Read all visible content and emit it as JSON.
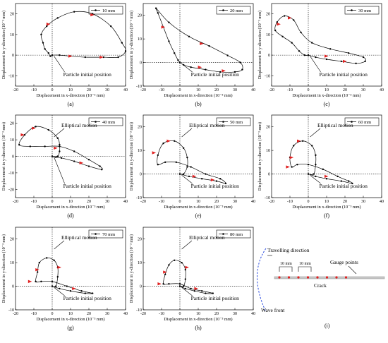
{
  "chart_data": [
    {
      "type": "line",
      "panel": "(a)",
      "legend": "10 mm",
      "xlabel": "Displacement in x-direction (10⁻³ mm)",
      "ylabel": "Displacement in y-direction (10⁻³ mm)",
      "xlim": [
        -20,
        40
      ],
      "ylim": [
        -15,
        25
      ],
      "xticks": [
        -20,
        -10,
        0,
        10,
        20,
        30,
        40
      ],
      "yticks": [
        -10,
        0,
        10,
        20
      ],
      "legend_position": "top-right",
      "annotations": [
        "Particle initial position"
      ],
      "series": [
        {
          "values": [
            [
              0,
              0
            ],
            [
              -1,
              -0.5
            ],
            [
              -2,
              1
            ],
            [
              -4,
              3
            ],
            [
              -5,
              6
            ],
            [
              -6,
              10
            ],
            [
              -3,
              14
            ],
            [
              3,
              18
            ],
            [
              12,
              21
            ],
            [
              22,
              20
            ],
            [
              32,
              14
            ],
            [
              38,
              6
            ],
            [
              40,
              2
            ],
            [
              36,
              -1
            ],
            [
              28,
              -1
            ],
            [
              18,
              -1
            ],
            [
              10,
              -0.5
            ],
            [
              4,
              0
            ],
            [
              0,
              0
            ]
          ]
        }
      ],
      "arrows": [
        [
          22,
          19.5
        ],
        [
          -2,
          15
        ],
        [
          10,
          -0.5
        ],
        [
          27,
          -1
        ]
      ]
    },
    {
      "type": "line",
      "panel": "(b)",
      "legend": "20 mm",
      "xlabel": "Displacement in x-direction (10⁻³ mm)",
      "ylabel": "Displacement in y-direction (10⁻³ mm)",
      "xlim": [
        -20,
        40
      ],
      "ylim": [
        -10,
        25
      ],
      "xticks": [
        -20,
        -10,
        0,
        10,
        20,
        30,
        40
      ],
      "yticks": [
        -10,
        0,
        10,
        20
      ],
      "legend_position": "top-right",
      "annotations": [
        "Particle initial position"
      ],
      "series": [
        {
          "values": [
            [
              0,
              0
            ],
            [
              -1,
              1
            ],
            [
              -3,
              4
            ],
            [
              -6,
              9
            ],
            [
              -9,
              15
            ],
            [
              -12,
              21
            ],
            [
              -13,
              23
            ],
            [
              -6,
              17
            ],
            [
              5,
              11
            ],
            [
              16,
              7
            ],
            [
              26,
              3
            ],
            [
              33,
              0
            ],
            [
              34,
              -3
            ],
            [
              30,
              -4
            ],
            [
              22,
              -4
            ],
            [
              14,
              -3
            ],
            [
              6,
              -2
            ],
            [
              2,
              -1
            ],
            [
              0,
              0
            ]
          ]
        }
      ],
      "arrows": [
        [
          -9,
          15
        ],
        [
          12,
          8
        ],
        [
          11,
          -2
        ],
        [
          24,
          -3.5
        ]
      ]
    },
    {
      "type": "line",
      "panel": "(c)",
      "legend": "30 mm",
      "xlabel": "Displacement in x-direction (10⁻³ mm)",
      "ylabel": "Displacement in y-direction (10⁻³ mm)",
      "xlim": [
        -20,
        40
      ],
      "ylim": [
        -15,
        25
      ],
      "xticks": [
        -20,
        -10,
        0,
        10,
        20,
        30,
        40
      ],
      "yticks": [
        -10,
        0,
        10,
        20
      ],
      "legend_position": "top-right",
      "annotations": [
        "Particle initial position"
      ],
      "series": [
        {
          "values": [
            [
              0,
              0
            ],
            [
              -2,
              0
            ],
            [
              -5,
              2
            ],
            [
              -9,
              6
            ],
            [
              -14,
              9
            ],
            [
              -18,
              12
            ],
            [
              -17,
              16
            ],
            [
              -13,
              19
            ],
            [
              -8,
              17
            ],
            [
              -4,
              11
            ],
            [
              2,
              6
            ],
            [
              12,
              3
            ],
            [
              22,
              1
            ],
            [
              30,
              -1
            ],
            [
              31,
              -3
            ],
            [
              26,
              -4
            ],
            [
              18,
              -3
            ],
            [
              10,
              -2
            ],
            [
              4,
              -1
            ],
            [
              0,
              0
            ]
          ]
        }
      ],
      "arrows": [
        [
          -16,
          15
        ],
        [
          -10,
          18
        ],
        [
          10,
          -0.5
        ],
        [
          20,
          -3
        ]
      ]
    },
    {
      "type": "line",
      "panel": "(d)",
      "legend": "40 mm",
      "xlabel": "Displacement in x-direction (10⁻³ mm)",
      "ylabel": "Displacement in y-direction (10⁻³ mm)",
      "xlim": [
        -20,
        40
      ],
      "ylim": [
        -25,
        25
      ],
      "xticks": [
        -20,
        -10,
        0,
        10,
        20,
        30,
        40
      ],
      "yticks": [
        -20,
        -10,
        0,
        10,
        20
      ],
      "legend_position": "top-right",
      "annotations": [
        "Elliptical motion",
        "Particle initial position"
      ],
      "series": [
        {
          "values": [
            [
              0,
              0
            ],
            [
              3,
              0
            ],
            [
              4,
              3
            ],
            [
              4,
              7
            ],
            [
              3,
              11
            ],
            [
              -2,
              16
            ],
            [
              -9,
              18
            ],
            [
              -15,
              13
            ],
            [
              -18,
              7
            ],
            [
              -12,
              6
            ],
            [
              -4,
              6
            ],
            [
              4,
              6
            ],
            [
              12,
              3
            ],
            [
              20,
              -2
            ],
            [
              26,
              -6
            ],
            [
              27,
              -8
            ],
            [
              20,
              -6
            ],
            [
              12,
              -3
            ],
            [
              5,
              -1
            ],
            [
              2,
              -0.5
            ],
            [
              0,
              0
            ]
          ]
        }
      ],
      "arrows": [
        [
          -10,
          17
        ],
        [
          -16,
          13
        ],
        [
          2,
          5
        ],
        [
          16,
          -4
        ]
      ]
    },
    {
      "type": "line",
      "panel": "(e)",
      "legend": "50 mm",
      "xlabel": "Displacement in x-direction (10⁻³ mm)",
      "ylabel": "Displacement in y-direction (10⁻³ mm)",
      "xlim": [
        -20,
        40
      ],
      "ylim": [
        -10,
        25
      ],
      "xticks": [
        -20,
        -10,
        0,
        10,
        20,
        30,
        40
      ],
      "yticks": [
        -10,
        0,
        10,
        20
      ],
      "legend_position": "top-right",
      "annotations": [
        "Elliptical motion",
        "Particle initial position"
      ],
      "series": [
        {
          "values": [
            [
              0,
              0
            ],
            [
              2,
              0
            ],
            [
              4,
              3
            ],
            [
              4,
              7
            ],
            [
              2,
              11
            ],
            [
              -3,
              14
            ],
            [
              -9,
              13
            ],
            [
              -12,
              8
            ],
            [
              -12,
              4
            ],
            [
              -8,
              5
            ],
            [
              -2,
              5
            ],
            [
              6,
              3
            ],
            [
              14,
              0
            ],
            [
              22,
              -2
            ],
            [
              25,
              -4
            ],
            [
              20,
              -3
            ],
            [
              12,
              -2
            ],
            [
              5,
              -1
            ],
            [
              0,
              0
            ]
          ]
        }
      ],
      "arrows": [
        [
          -6,
          14
        ],
        [
          -14,
          9
        ],
        [
          8,
          -1
        ],
        [
          18,
          -2.5
        ]
      ]
    },
    {
      "type": "line",
      "panel": "(f)",
      "legend": "60 mm",
      "xlabel": "Displacement in x-direction (10⁻³ mm)",
      "ylabel": "Displacement in y-direction (10⁻³ mm)",
      "xlim": [
        -20,
        40
      ],
      "ylim": [
        -10,
        25
      ],
      "xticks": [
        -20,
        -10,
        0,
        10,
        20,
        30,
        40
      ],
      "yticks": [
        -10,
        0,
        10,
        20
      ],
      "legend_position": "top-right",
      "annotations": [
        "Elliptical motion",
        "Particle initial position"
      ],
      "series": [
        {
          "values": [
            [
              0,
              0
            ],
            [
              3,
              0
            ],
            [
              4,
              4
            ],
            [
              4,
              8
            ],
            [
              2,
              12
            ],
            [
              -3,
              14
            ],
            [
              -8,
              12
            ],
            [
              -10,
              7
            ],
            [
              -9,
              3
            ],
            [
              -6,
              4
            ],
            [
              0,
              4
            ],
            [
              8,
              2
            ],
            [
              16,
              -1
            ],
            [
              22,
              -3
            ],
            [
              24,
              -4
            ],
            [
              18,
              -3
            ],
            [
              10,
              -2
            ],
            [
              4,
              -1
            ],
            [
              0,
              0
            ]
          ]
        }
      ],
      "arrows": [
        [
          -5,
          14
        ],
        [
          -9,
          7
        ],
        [
          -11,
          3
        ],
        [
          10,
          -1
        ]
      ]
    },
    {
      "type": "line",
      "panel": "(g)",
      "legend": "70 mm",
      "xlabel": "Displacement in x-direction (10⁻³ mm)",
      "ylabel": "Displacement in y-direction (10⁻³ mm)",
      "xlim": [
        -20,
        40
      ],
      "ylim": [
        -10,
        25
      ],
      "xticks": [
        -20,
        -10,
        0,
        10,
        20,
        30,
        40
      ],
      "yticks": [
        -10,
        0,
        10,
        20
      ],
      "legend_position": "top-right",
      "annotations": [
        "Elliptical motion",
        "Particle initial position"
      ],
      "series": [
        {
          "values": [
            [
              0,
              0
            ],
            [
              2,
              0
            ],
            [
              3,
              4
            ],
            [
              3,
              8
            ],
            [
              1,
              11
            ],
            [
              -3,
              12
            ],
            [
              -7,
              10
            ],
            [
              -8,
              6
            ],
            [
              -9,
              2
            ],
            [
              -6,
              2
            ],
            [
              0,
              2
            ],
            [
              8,
              0
            ],
            [
              16,
              -2
            ],
            [
              22,
              -3
            ],
            [
              18,
              -3
            ],
            [
              10,
              -2
            ],
            [
              4,
              -1
            ],
            [
              0,
              0
            ]
          ]
        }
      ],
      "arrows": [
        [
          -8,
          7
        ],
        [
          4,
          8
        ],
        [
          -12,
          2
        ],
        [
          12,
          -1
        ]
      ]
    },
    {
      "type": "line",
      "panel": "(h)",
      "legend": "80 mm",
      "xlabel": "Displacement in x-direction (10⁻³ mm)",
      "ylabel": "Displacement in y-direction (10⁻³ mm)",
      "xlim": [
        -20,
        40
      ],
      "ylim": [
        -10,
        25
      ],
      "xticks": [
        -20,
        -10,
        0,
        10,
        20,
        30,
        40
      ],
      "yticks": [
        -10,
        0,
        10,
        20
      ],
      "legend_position": "top-right",
      "annotations": [
        "Elliptical motion",
        "Particle initial position"
      ],
      "series": [
        {
          "values": [
            [
              0,
              0
            ],
            [
              2,
              0
            ],
            [
              3,
              3
            ],
            [
              3,
              7
            ],
            [
              1,
              10
            ],
            [
              -3,
              11
            ],
            [
              -6,
              9
            ],
            [
              -8,
              5
            ],
            [
              -9,
              1
            ],
            [
              -6,
              1
            ],
            [
              0,
              1
            ],
            [
              6,
              -1
            ],
            [
              12,
              -2
            ],
            [
              18,
              -3
            ],
            [
              14,
              -3
            ],
            [
              8,
              -2
            ],
            [
              3,
              -1
            ],
            [
              0,
              0
            ]
          ]
        }
      ],
      "arrows": [
        [
          -8,
          6
        ],
        [
          4,
          8
        ],
        [
          -11,
          1
        ],
        [
          9,
          -1
        ]
      ]
    }
  ],
  "schematic": {
    "panel": "(i)",
    "travelling_direction": "Travelling direction",
    "gauge_points": "Gauge points",
    "spacing_1": "10 mm",
    "spacing_2": "10 mm",
    "crack": "Crack",
    "wave_front": "Wave front",
    "gauge_point_color": "#e02020",
    "wave_front_color": "#3050e0",
    "gauge_point_count": 8
  },
  "colors": {
    "line": "#000000",
    "arrow": "#e02020",
    "axis": "#000000"
  }
}
